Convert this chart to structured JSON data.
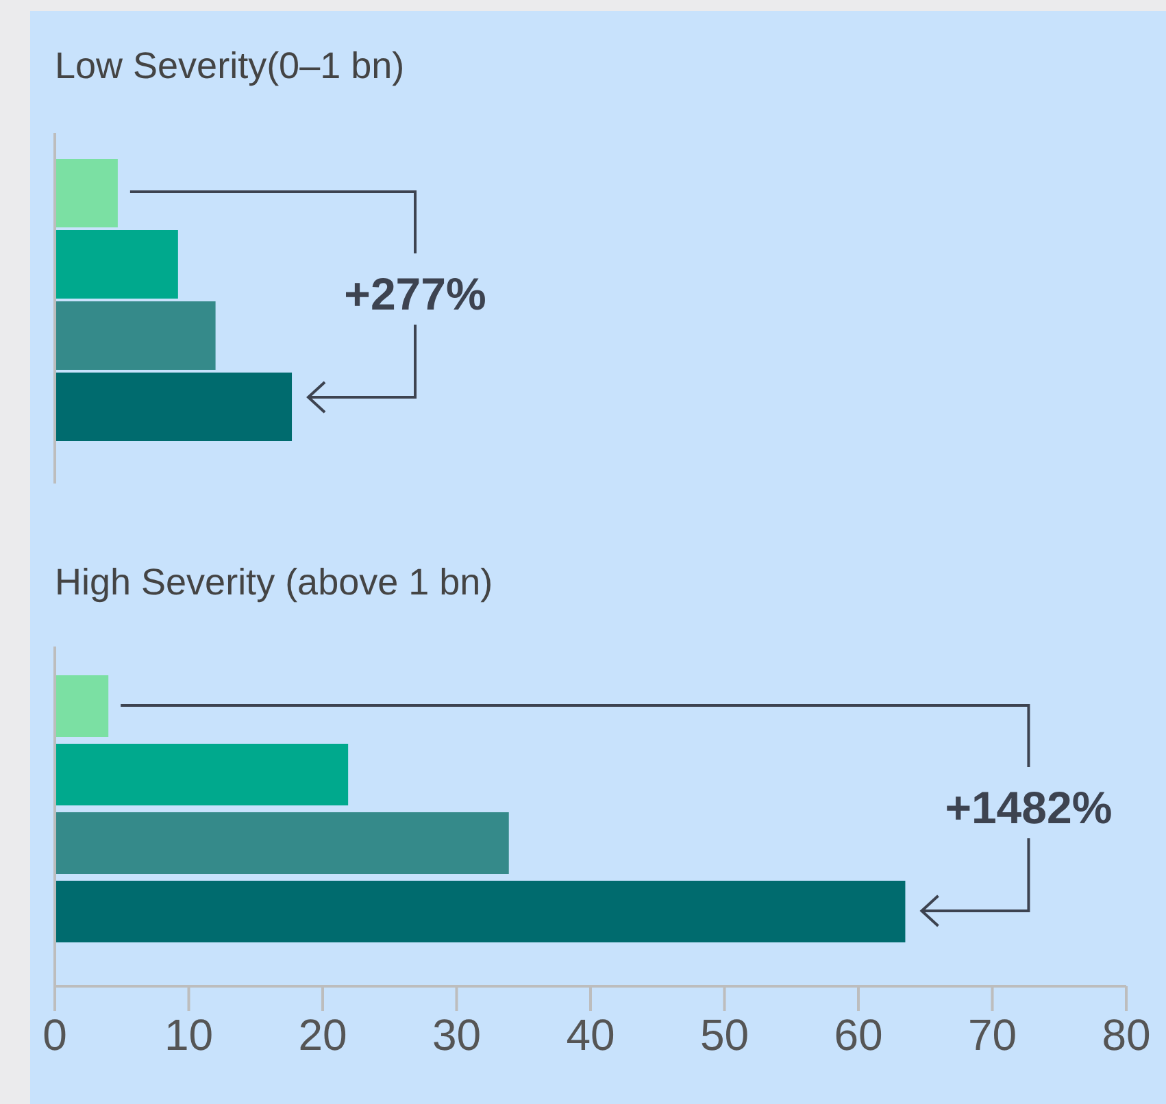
{
  "chart_data": [
    {
      "type": "bar",
      "orientation": "horizontal",
      "title": "Low Severity(0–1 bn)",
      "categories": [
        null,
        null,
        null,
        null
      ],
      "values": [
        4.7,
        9.2,
        12.0,
        17.7
      ],
      "colors": [
        "#7be0a3",
        "#00a98d",
        "#358a8a",
        "#006b6e"
      ],
      "xlim": [
        0,
        80
      ],
      "xticks": [
        0,
        10,
        20,
        30,
        40,
        50,
        60,
        70,
        80
      ],
      "tick_labels": false,
      "annotations": [
        "+277%"
      ]
    },
    {
      "type": "bar",
      "orientation": "horizontal",
      "title": "High Severity (above 1 bn)",
      "categories": [
        null,
        null,
        null,
        null
      ],
      "values": [
        4.0,
        21.9,
        33.9,
        63.5
      ],
      "colors": [
        "#7be0a3",
        "#00a98d",
        "#358a8a",
        "#006b6e"
      ],
      "xlim": [
        0,
        80
      ],
      "xticks": [
        0,
        10,
        20,
        30,
        40,
        50,
        60,
        70,
        80
      ],
      "annotations": [
        "+1482%"
      ]
    }
  ]
}
